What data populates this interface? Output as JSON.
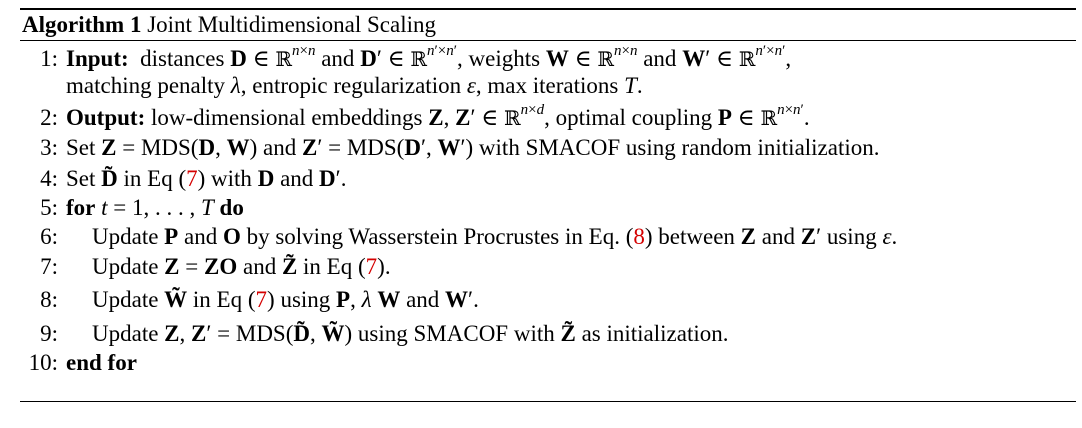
{
  "algorithm": {
    "label": "Algorithm 1",
    "title": "Joint Multidimensional Scaling"
  },
  "lines": [
    {
      "num": "1:",
      "keyword": "Input:",
      "text": "distances D ∈ ℝ^{n×n} and D′ ∈ ℝ^{n′×n′}, weights W ∈ ℝ^{n×n} and W′ ∈ ℝ^{n′×n′}, matching penalty λ, entropic regularization ε, max iterations T."
    },
    {
      "num": "2:",
      "keyword": "Output:",
      "text": "low-dimensional embeddings Z, Z′ ∈ ℝ^{n×d}, optimal coupling P ∈ ℝ^{n×n′}."
    },
    {
      "num": "3:",
      "text": "Set Z = MDS(D, W) and Z′ = MDS(D′, W′) with SMACOF using random initialization."
    },
    {
      "num": "4:",
      "text": "Set D̃ in Eq (7) with D and D′."
    },
    {
      "num": "5:",
      "text": "for t = 1, . . . , T do"
    },
    {
      "num": "6:",
      "text": "Update P and O by solving Wasserstein Procrustes in Eq. (8) between Z and Z′ using ε."
    },
    {
      "num": "7:",
      "text": "Update Z = ZO and Z̃ in Eq (7)."
    },
    {
      "num": "8:",
      "text": "Update W̃ in Eq (7) using P, λ W and W′."
    },
    {
      "num": "9:",
      "text": "Update Z, Z′ = MDS(D̃, W̃) using SMACOF with Z̃ as initialization."
    },
    {
      "num": "10:",
      "text": "end for"
    }
  ],
  "refs": {
    "eq7": "7",
    "eq8": "8"
  },
  "colors": {
    "ref": "#d40000",
    "text": "#000000"
  }
}
